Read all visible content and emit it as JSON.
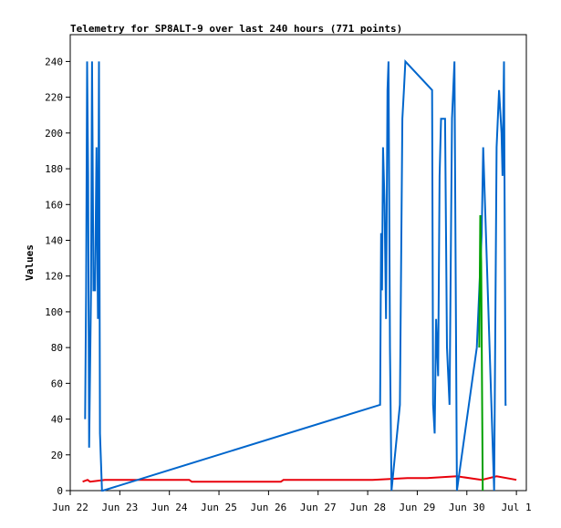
{
  "chart_data": {
    "type": "line",
    "title": "Telemetry for SP8ALT-9 over last 240 hours (771 points)",
    "ylabel": "Values",
    "xlabel": "",
    "ylim": [
      0,
      255
    ],
    "yticks": [
      0,
      20,
      40,
      60,
      80,
      100,
      120,
      140,
      160,
      180,
      200,
      220,
      240
    ],
    "xticks": [
      "Jun 22",
      "Jun 23",
      "Jun 24",
      "Jun 25",
      "Jun 26",
      "Jun 27",
      "Jun 28",
      "Jun 29",
      "Jun 30",
      "Jul 1"
    ],
    "xtick_days": [
      0,
      1,
      2,
      3,
      4,
      5,
      6,
      7,
      8,
      9
    ],
    "xlim_days": [
      0,
      9.2
    ],
    "grid": false,
    "colors": {
      "blue": "#0066cc",
      "red": "#e8000b",
      "green": "#00a000"
    },
    "series": [
      {
        "color": "#e8000b",
        "x": [
          0.25,
          0.35,
          0.4,
          0.7,
          1.3,
          2.4,
          2.45,
          3.5,
          4.25,
          4.3,
          5.5,
          6.1,
          6.8,
          7.2,
          7.8,
          8.3,
          8.6,
          9.0
        ],
        "values": [
          5,
          6,
          5,
          6,
          6,
          6,
          5,
          5,
          5,
          6,
          6,
          6,
          7,
          7,
          8,
          6,
          8,
          6
        ]
      },
      {
        "color": "#0066cc",
        "x": [
          0.3,
          0.32,
          0.34,
          0.36,
          0.38,
          0.42,
          0.44,
          0.47,
          0.5,
          0.53,
          0.56,
          0.58,
          0.6,
          0.62,
          0.64,
          0.66,
          6.25,
          6.27,
          6.29,
          6.31,
          6.34,
          6.37,
          6.4,
          6.42,
          6.45,
          6.48,
          6.65,
          6.7,
          6.73,
          6.76,
          7.3,
          7.32,
          7.35,
          7.38,
          7.42,
          7.45,
          7.48,
          7.52,
          7.56,
          7.6,
          7.65,
          7.7,
          7.75,
          7.8,
          8.2,
          8.3,
          8.33,
          8.55,
          8.6,
          8.65,
          8.7,
          8.72,
          8.75,
          8.78,
          8.8
        ],
        "values": [
          40,
          112,
          240,
          176,
          24,
          112,
          240,
          112,
          112,
          192,
          96,
          240,
          32,
          16,
          0,
          0,
          48,
          144,
          112,
          192,
          160,
          96,
          224,
          240,
          80,
          0,
          48,
          208,
          224,
          240,
          224,
          48,
          32,
          96,
          64,
          176,
          208,
          208,
          208,
          80,
          48,
          208,
          240,
          0,
          80,
          144,
          192,
          0,
          192,
          224,
          200,
          176,
          240,
          48,
          48
        ]
      },
      {
        "color": "#00a000",
        "x": [
          8.25,
          8.27,
          8.29,
          8.32
        ],
        "values": [
          80,
          154,
          128,
          0
        ]
      }
    ]
  }
}
